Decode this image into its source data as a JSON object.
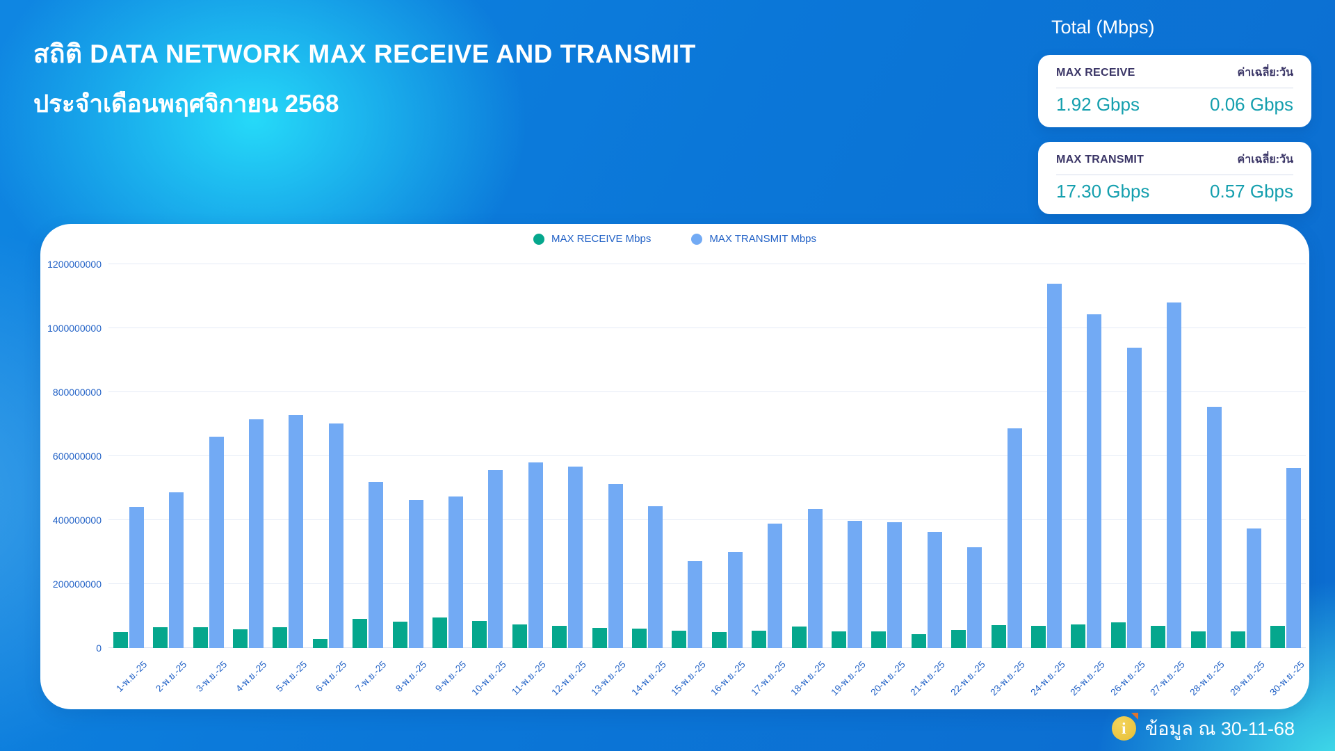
{
  "header": {
    "title": "สถิติ DATA NETWORK MAX RECEIVE AND TRANSMIT",
    "subtitle": "ประจำเดือนพฤศจิกายน 2568"
  },
  "totals": {
    "heading": "Total (Mbps)",
    "cards": [
      {
        "label": "MAX RECEIVE",
        "avg_label": "ค่าเฉลี่ย:วัน",
        "total": "1.92 Gbps",
        "avg": "0.06 Gbps"
      },
      {
        "label": "MAX TRANSMIT",
        "avg_label": "ค่าเฉลี่ย:วัน",
        "total": "17.30 Gbps",
        "avg": "0.57 Gbps"
      }
    ]
  },
  "footer": {
    "icon": "info-icon",
    "icon_glyph": "i",
    "text": "ข้อมูล ณ 30-11-68"
  },
  "colors": {
    "receive_bar": "#05a78d",
    "transmit_bar": "#72aaf4",
    "axis_text": "#2161c6",
    "grid_line": "#e4eaf6",
    "card_value": "#149fae",
    "card_label": "#3a3566",
    "background_blue": "#0b77d8",
    "background_cyan": "#27defa"
  },
  "chart_data": {
    "type": "bar",
    "title": "",
    "xlabel": "",
    "ylabel": "",
    "grid": true,
    "legend_position": "top-center",
    "ylim": [
      0,
      1200000000
    ],
    "yticks": [
      0,
      200000000,
      400000000,
      600000000,
      800000000,
      1000000000,
      1200000000
    ],
    "categories": [
      "1-พ.ย.-25",
      "2-พ.ย.-25",
      "3-พ.ย.-25",
      "4-พ.ย.-25",
      "5-พ.ย.-25",
      "6-พ.ย.-25",
      "7-พ.ย.-25",
      "8-พ.ย.-25",
      "9-พ.ย.-25",
      "10-พ.ย.-25",
      "11-พ.ย.-25",
      "12-พ.ย.-25",
      "13-พ.ย.-25",
      "14-พ.ย.-25",
      "15-พ.ย.-25",
      "16-พ.ย.-25",
      "17-พ.ย.-25",
      "18-พ.ย.-25",
      "19-พ.ย.-25",
      "20-พ.ย.-25",
      "21-พ.ย.-25",
      "22-พ.ย.-25",
      "23-พ.ย.-25",
      "24-พ.ย.-25",
      "25-พ.ย.-25",
      "26-พ.ย.-25",
      "27-พ.ย.-25",
      "28-พ.ย.-25",
      "29-พ.ย.-25",
      "30-พ.ย.-25"
    ],
    "series": [
      {
        "name": "MAX RECEIVE Mbps",
        "color": "#05a78d",
        "values": [
          50000000,
          66000000,
          65000000,
          59000000,
          66000000,
          28000000,
          92000000,
          82000000,
          95000000,
          85000000,
          73000000,
          70000000,
          64000000,
          60000000,
          54000000,
          50000000,
          54000000,
          67000000,
          52000000,
          52000000,
          44000000,
          57000000,
          72000000,
          69000000,
          74000000,
          80000000,
          70000000,
          52000000,
          52000000,
          70000000
        ]
      },
      {
        "name": "MAX TRANSMIT Mbps",
        "color": "#72aaf4",
        "values": [
          442000000,
          487000000,
          660000000,
          715000000,
          729000000,
          703000000,
          520000000,
          462000000,
          473000000,
          557000000,
          580000000,
          568000000,
          513000000,
          444000000,
          272000000,
          299000000,
          390000000,
          434000000,
          397000000,
          394000000,
          363000000,
          316000000,
          688000000,
          1140000000,
          1043000000,
          940000000,
          1080000000,
          754000000,
          375000000,
          564000000
        ]
      }
    ]
  }
}
